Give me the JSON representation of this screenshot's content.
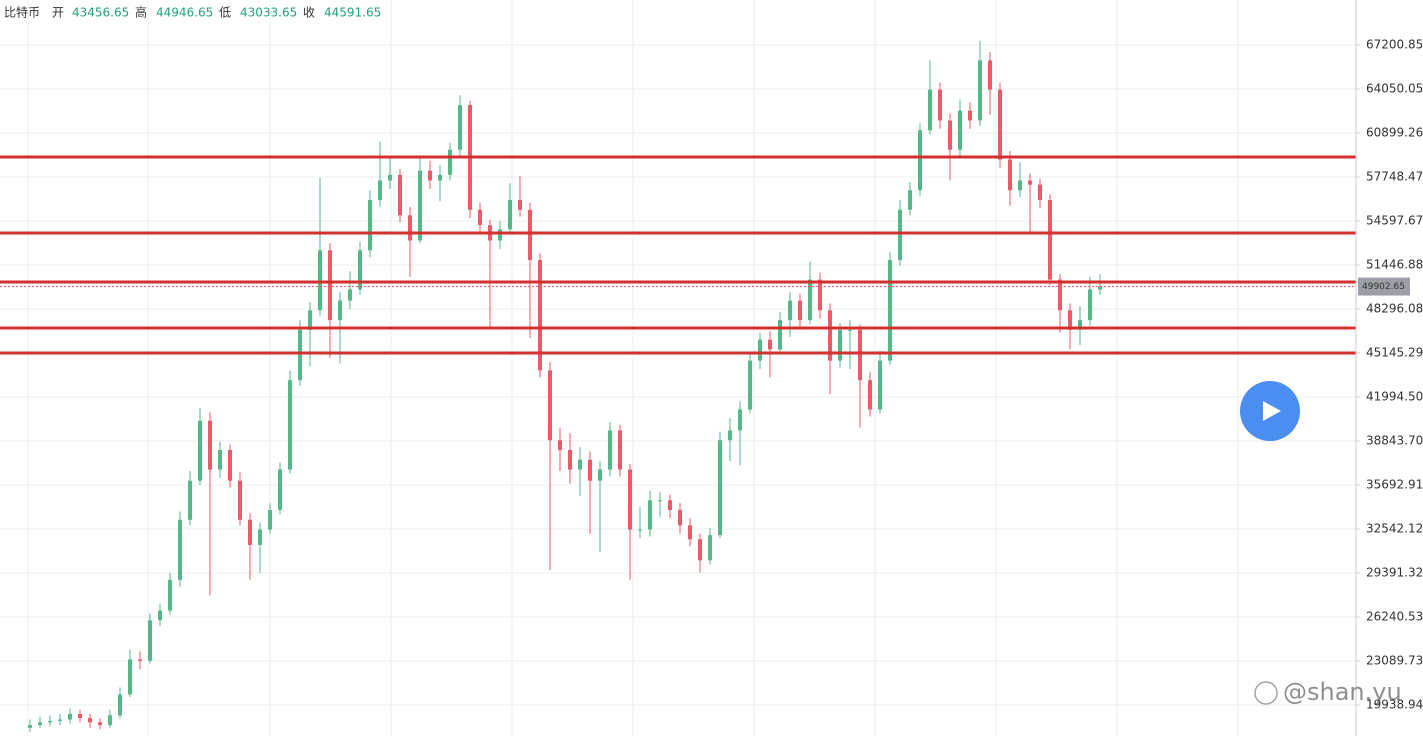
{
  "chart_data": {
    "type": "candlestick",
    "ohlc_header": {
      "name": "比特币",
      "open_label": "开",
      "open": 43456.65,
      "high_label": "高",
      "high": 44946.65,
      "low_label": "低",
      "low": 43033.65,
      "close_label": "收",
      "close": 44591.65
    },
    "up_color": "#53b987",
    "down_color": "#eb5a66",
    "ylim": [
      17718,
      70423
    ],
    "yticks": [
      67200.85,
      64050.05,
      60899.26,
      57748.47,
      54597.67,
      51446.88,
      48296.08,
      45145.29,
      {
        "value": 41994.5,
        "label": "41994.50"
      },
      {
        "value": 38843.7,
        "label": "38843.70"
      },
      35692.91,
      32542.12,
      29391.32,
      26240.53,
      23089.73,
      19938.94
    ],
    "grid": true,
    "levels": [
      59180,
      53738,
      50229,
      46935,
      45145
    ],
    "level_color": "#d32f2f",
    "last_price": 49902.65,
    "watermark": "@shan.yu",
    "candles": [
      [
        18300,
        18900,
        18000,
        18500
      ],
      [
        18500,
        19100,
        18300,
        18700
      ],
      [
        18700,
        19200,
        18400,
        18800
      ],
      [
        18800,
        19300,
        18500,
        18900
      ],
      [
        18900,
        19700,
        18600,
        19300
      ],
      [
        19300,
        19600,
        18700,
        19000
      ],
      [
        19000,
        19300,
        18300,
        18700
      ],
      [
        18700,
        19000,
        18200,
        18500
      ],
      [
        18500,
        19600,
        18300,
        19200
      ],
      [
        19200,
        21200,
        19000,
        20700
      ],
      [
        20700,
        23900,
        20500,
        23200
      ],
      [
        23200,
        23800,
        22500,
        23100
      ],
      [
        23100,
        26500,
        22900,
        26000
      ],
      [
        26000,
        27200,
        25600,
        26700
      ],
      [
        26700,
        29400,
        26400,
        28900
      ],
      [
        28900,
        33800,
        28400,
        33200
      ],
      [
        33200,
        36700,
        32800,
        36000
      ],
      [
        36000,
        41200,
        35700,
        40300
      ],
      [
        40300,
        40900,
        27800,
        36800
      ],
      [
        36800,
        38800,
        36200,
        38200
      ],
      [
        38200,
        38600,
        35500,
        36000
      ],
      [
        36000,
        36600,
        32800,
        33200
      ],
      [
        33200,
        33700,
        28900,
        31400
      ],
      [
        31400,
        33000,
        29400,
        32500
      ],
      [
        32500,
        34400,
        32200,
        33900
      ],
      [
        33900,
        37300,
        33600,
        36800
      ],
      [
        36800,
        43900,
        36500,
        43200
      ],
      [
        43200,
        47500,
        42800,
        46800
      ],
      [
        46800,
        48800,
        44200,
        48200
      ],
      [
        48200,
        57700,
        47800,
        52500
      ],
      [
        52500,
        53000,
        44800,
        47500
      ],
      [
        47500,
        49500,
        44400,
        48900
      ],
      [
        48900,
        51000,
        48300,
        49700
      ],
      [
        49700,
        53100,
        49300,
        52500
      ],
      [
        52500,
        56800,
        52000,
        56100
      ],
      [
        56100,
        60300,
        55600,
        57500
      ],
      [
        57500,
        59100,
        56900,
        57900
      ],
      [
        57900,
        58300,
        54500,
        55000
      ],
      [
        55000,
        55600,
        50600,
        53200
      ],
      [
        53200,
        59300,
        53000,
        58200
      ],
      [
        58200,
        58900,
        56900,
        57500
      ],
      [
        57500,
        58600,
        56000,
        57900
      ],
      [
        57900,
        60200,
        57500,
        59700
      ],
      [
        59700,
        63600,
        59300,
        62900
      ],
      [
        62900,
        63200,
        54800,
        55400
      ],
      [
        55400,
        55900,
        53700,
        54300
      ],
      [
        54300,
        54700,
        47000,
        53200
      ],
      [
        53200,
        54600,
        52600,
        54000
      ],
      [
        54000,
        57300,
        53600,
        56100
      ],
      [
        56100,
        57800,
        54900,
        55400
      ],
      [
        55400,
        55900,
        46200,
        51800
      ],
      [
        51800,
        52300,
        43400,
        43900
      ],
      [
        43900,
        44500,
        29600,
        38900
      ],
      [
        38900,
        39800,
        36700,
        38200
      ],
      [
        38200,
        39400,
        35800,
        36800
      ],
      [
        36800,
        38400,
        34900,
        37500
      ],
      [
        37500,
        38100,
        32200,
        36000
      ],
      [
        36000,
        37400,
        30900,
        36800
      ],
      [
        36800,
        40200,
        36300,
        39600
      ],
      [
        39600,
        40000,
        36300,
        36800
      ],
      [
        36800,
        37200,
        28900,
        32500
      ],
      [
        32500,
        34100,
        31900,
        32500
      ],
      [
        32500,
        35300,
        32000,
        34600
      ],
      [
        34600,
        35200,
        33400,
        34600
      ],
      [
        34600,
        35000,
        33300,
        33900
      ],
      [
        33900,
        34400,
        32200,
        32800
      ],
      [
        32800,
        33300,
        31300,
        31800
      ],
      [
        31800,
        32200,
        29400,
        30300
      ],
      [
        30300,
        32600,
        30000,
        32100
      ],
      [
        32100,
        39500,
        31900,
        38900
      ],
      [
        38900,
        40500,
        37400,
        39600
      ],
      [
        39600,
        41700,
        37100,
        41100
      ],
      [
        41100,
        45200,
        40800,
        44600
      ],
      [
        44600,
        46600,
        44000,
        46100
      ],
      [
        46100,
        46700,
        43400,
        45400
      ],
      [
        45400,
        48100,
        45100,
        47500
      ],
      [
        47500,
        49500,
        46300,
        48900
      ],
      [
        48900,
        49400,
        46800,
        47500
      ],
      [
        47500,
        51700,
        47200,
        50400
      ],
      [
        50400,
        50900,
        47600,
        48200
      ],
      [
        48200,
        48700,
        42200,
        44600
      ],
      [
        44600,
        47300,
        44100,
        46800
      ],
      [
        46800,
        47500,
        44000,
        46800
      ],
      [
        46800,
        47200,
        39800,
        43200
      ],
      [
        43200,
        43800,
        40600,
        41100
      ],
      [
        41100,
        45300,
        40800,
        44600
      ],
      [
        44600,
        52400,
        44300,
        51800
      ],
      [
        51800,
        56100,
        51400,
        55400
      ],
      [
        55400,
        57400,
        55000,
        56800
      ],
      [
        56800,
        61600,
        56400,
        61100
      ],
      [
        61100,
        66100,
        60800,
        64000
      ],
      [
        64000,
        64500,
        61200,
        61800
      ],
      [
        61800,
        62300,
        57500,
        59700
      ],
      [
        59700,
        63300,
        59200,
        62500
      ],
      [
        62500,
        63100,
        61200,
        61800
      ],
      [
        61800,
        67500,
        61400,
        66100
      ],
      [
        66100,
        66700,
        62200,
        64000
      ],
      [
        64000,
        64500,
        58400,
        59000
      ],
      [
        59000,
        59600,
        55700,
        56800
      ],
      [
        56800,
        58800,
        56300,
        57500
      ],
      [
        57500,
        58000,
        53800,
        57200
      ],
      [
        57200,
        57600,
        55500,
        56100
      ],
      [
        56100,
        56500,
        50000,
        50400
      ],
      [
        50400,
        50800,
        46600,
        48200
      ],
      [
        48200,
        48700,
        45400,
        46800
      ],
      [
        46800,
        48500,
        45700,
        47500
      ],
      [
        47500,
        50600,
        47100,
        49700
      ],
      [
        49700,
        50800,
        49300,
        49900
      ]
    ]
  }
}
